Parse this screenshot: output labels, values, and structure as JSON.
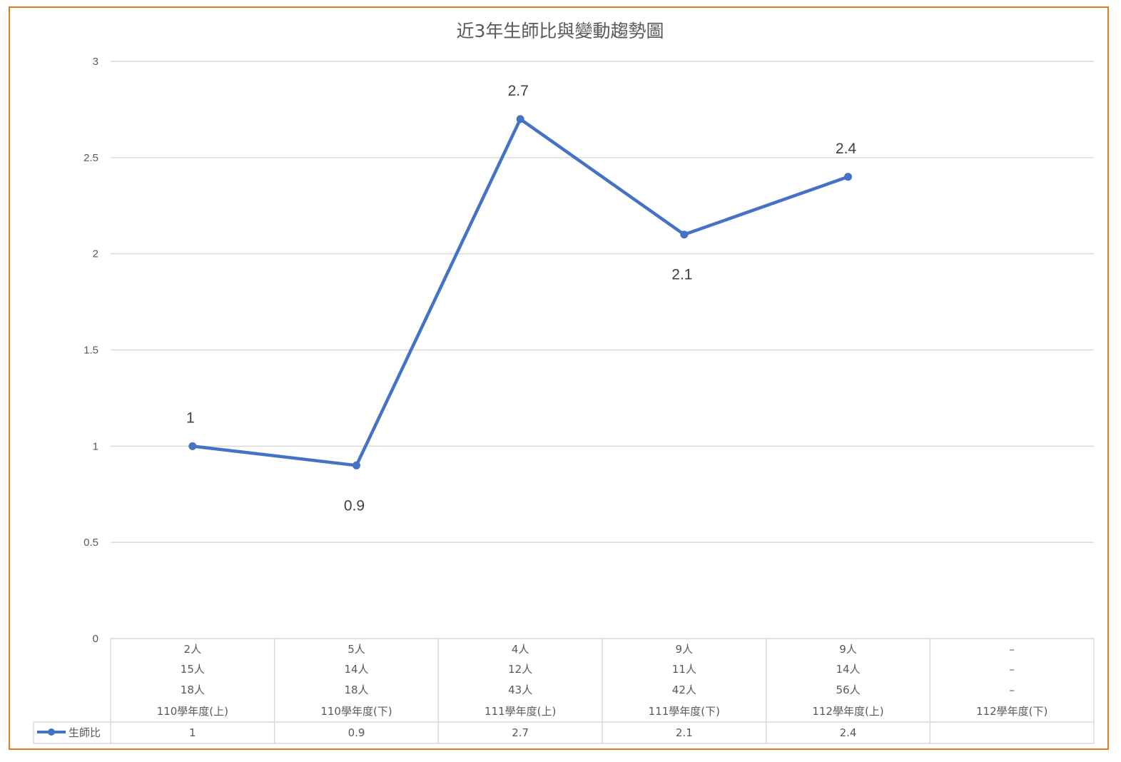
{
  "chart_data": {
    "type": "line",
    "title": "近3年生師比與變動趨勢圖",
    "categories": [
      "110學年度(上)",
      "110學年度(下)",
      "111學年度(上)",
      "111學年度(下)",
      "112學年度(上)",
      "112學年度(下)"
    ],
    "series": [
      {
        "name": "生師比",
        "values": [
          1,
          0.9,
          2.7,
          2.1,
          2.4,
          null
        ],
        "color": "#4472C4"
      }
    ],
    "category_detail_rows": [
      [
        "2人",
        "5人",
        "4人",
        "9人",
        "9人",
        "–"
      ],
      [
        "15人",
        "14人",
        "12人",
        "11人",
        "14人",
        "–"
      ],
      [
        "18人",
        "18人",
        "43人",
        "42人",
        "56人",
        "–"
      ]
    ],
    "data_table_values": [
      "1",
      "0.9",
      "2.7",
      "2.1",
      "2.4",
      ""
    ],
    "ylim": [
      0,
      3
    ],
    "yticks": [
      0,
      0.5,
      1,
      1.5,
      2,
      2.5,
      3
    ],
    "ytick_labels": [
      "0",
      "0.5",
      "1",
      "1.5",
      "2",
      "2.5",
      "3"
    ],
    "grid": true,
    "legend_placement": "data-table",
    "frame_color": "#E07B1F"
  }
}
